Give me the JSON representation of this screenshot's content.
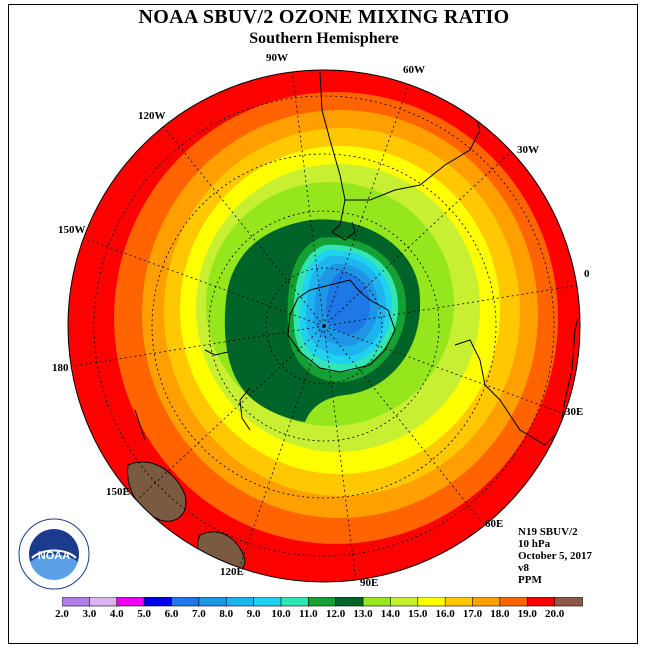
{
  "title": "NOAA SBUV/2 OZONE MIXING RATIO",
  "subtitle": "Southern Hemisphere",
  "longitude_labels": {
    "w90": "90W",
    "w60": "60W",
    "w30": "30W",
    "w120": "120W",
    "w150": "150W",
    "zero": "0",
    "lon180": "180",
    "e30": "30E",
    "e60": "60E",
    "e90": "90E",
    "e120": "120E",
    "e150": "150E"
  },
  "info": {
    "satellite": "N19 SBUV/2",
    "pressure": "10 hPa",
    "date": "October 5, 2017",
    "version": "v8",
    "units": "PPM"
  },
  "logo_text": "NOAA",
  "colorbar": {
    "ticks": [
      "2.0",
      "3.0",
      "4.0",
      "5.0",
      "6.0",
      "7.0",
      "8.0",
      "9.0",
      "10.0",
      "11.0",
      "12.0",
      "13.0",
      "14.0",
      "15.0",
      "16.0",
      "17.0",
      "18.0",
      "19.0",
      "20.0"
    ],
    "colors": [
      "#b07fe8",
      "#dcb4f2",
      "#ee00ee",
      "#0000e6",
      "#1e78e6",
      "#1e96e6",
      "#1eb4f0",
      "#1ed2f0",
      "#32e6b4",
      "#14a032",
      "#006428",
      "#96e61e",
      "#c8f032",
      "#ffff00",
      "#ffc800",
      "#ffa000",
      "#ff6400",
      "#ff0000",
      "#8c5a46"
    ]
  },
  "colors": {
    "low": "#1e78e6",
    "high": "#ff0000",
    "land": "#7a5a40"
  }
}
